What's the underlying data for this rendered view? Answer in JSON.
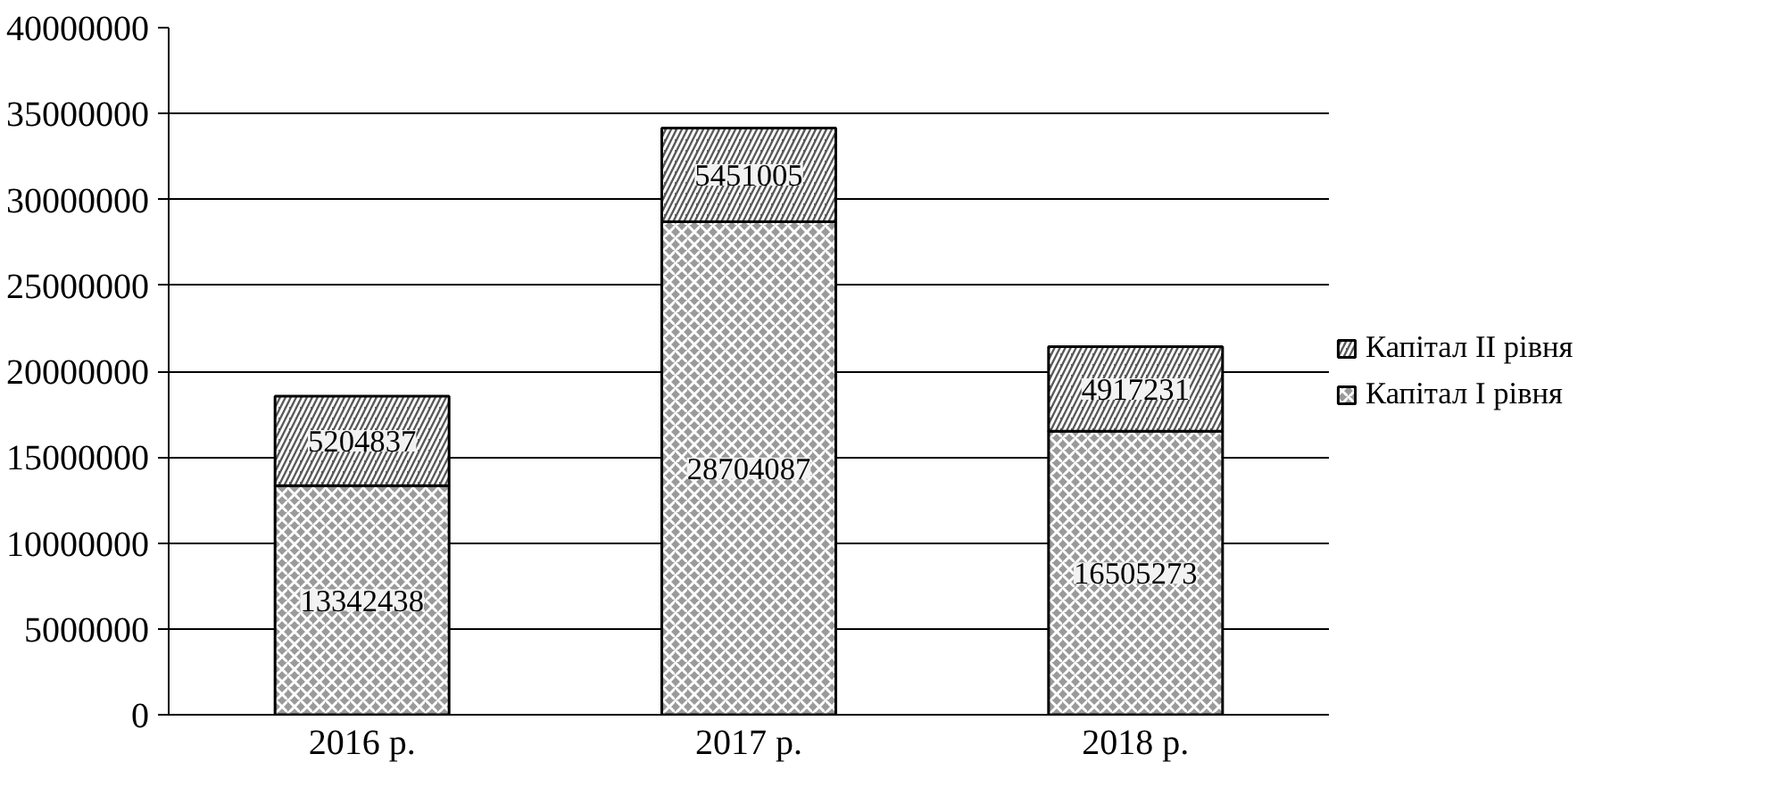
{
  "chart_data": {
    "type": "bar",
    "stacked": true,
    "categories": [
      "2016 р.",
      "2017 р.",
      "2018 р."
    ],
    "series": [
      {
        "name": "Капітал I рівня",
        "color": "#9a9a9a",
        "values": [
          13342438,
          28704087,
          16505273
        ]
      },
      {
        "name": "Капітал II рівня",
        "color": "#5a5a5a",
        "values": [
          5204837,
          5451005,
          4917231
        ]
      }
    ],
    "ylim": [
      0,
      40000000
    ],
    "yticks": [
      0,
      5000000,
      10000000,
      15000000,
      20000000,
      25000000,
      30000000,
      35000000,
      40000000
    ],
    "grid": "y",
    "legend": "right",
    "data_labels": true
  }
}
